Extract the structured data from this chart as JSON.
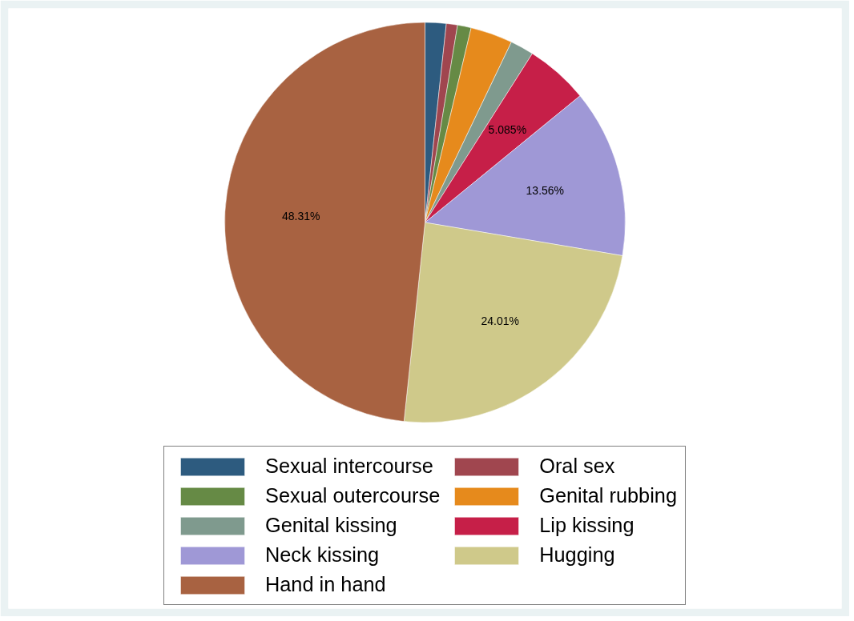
{
  "chart_data": {
    "type": "pie",
    "categories": [
      "Sexual intercourse",
      "Oral sex",
      "Sexual outercourse",
      "Genital rubbing",
      "Genital kissing",
      "Lip kissing",
      "Neck kissing",
      "Hugging",
      "Hand in hand"
    ],
    "values": [
      1.7,
      0.9,
      1.1,
      3.4,
      1.9,
      5.085,
      13.56,
      24.01,
      48.31
    ],
    "value_labels": [
      null,
      null,
      null,
      null,
      null,
      "5.085%",
      "13.56%",
      "24.01%",
      "48.31%"
    ],
    "colors": [
      "#2d5b7f",
      "#a0464f",
      "#668a45",
      "#e68a1c",
      "#7f9a8e",
      "#c61f48",
      "#9f98d6",
      "#cfc98a",
      "#a86241"
    ],
    "legend": "bottom"
  }
}
